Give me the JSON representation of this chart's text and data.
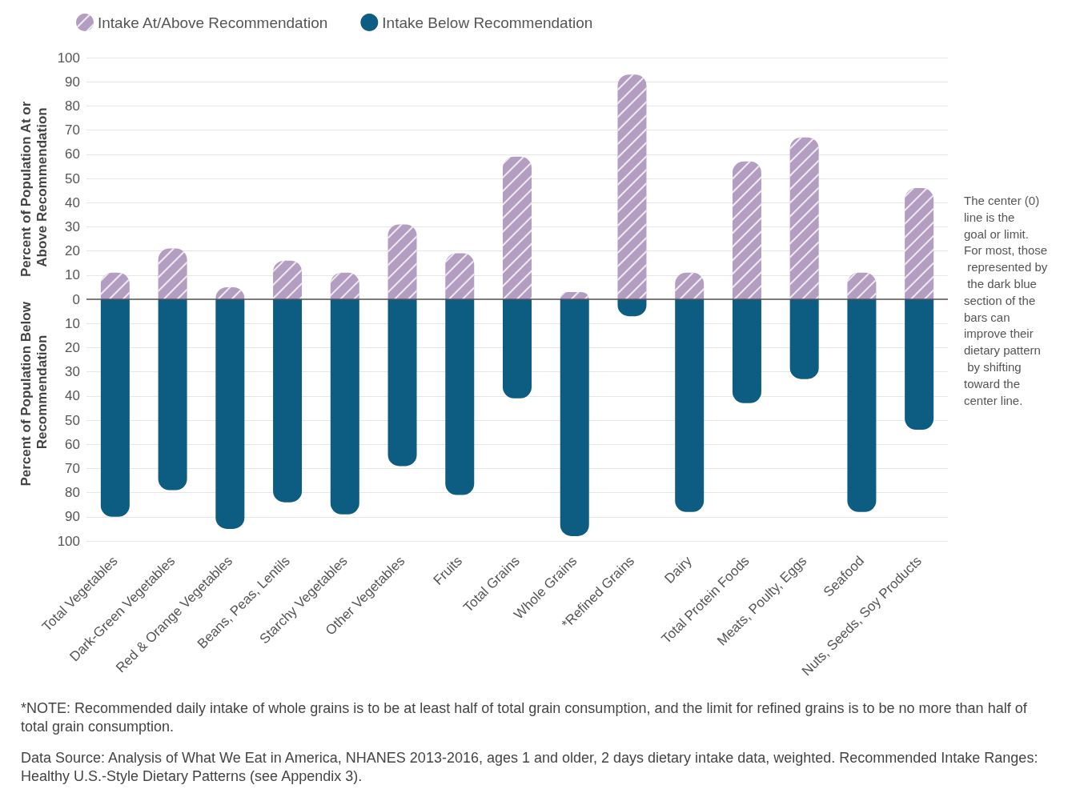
{
  "chart_data": {
    "type": "bar",
    "stacked": true,
    "ylabel": "Percent of Population At or Above Recommendation",
    "categories": [
      "Total Vegetables",
      "Dark-Green Vegetables",
      "Red & Orange Vegetables",
      "Beans, Peas, Lentils",
      "Starchy Vegetables",
      "Other Vegetables",
      "Fruits",
      "Total Grains",
      "Whole Grains",
      "*Refined Grains",
      "Dairy",
      "Total Protein Foods",
      "Meats, Poulty, Eggs",
      "Seafood",
      "Nuts, Seeds, Soy Products"
    ],
    "series": [
      {
        "name": "Intake At/Above Recommendation",
        "color": "#b39dc0",
        "values": [
          11,
          21,
          5,
          16,
          11,
          31,
          19,
          59,
          3,
          93,
          11,
          57,
          67,
          11,
          46
        ]
      },
      {
        "name": "Intake Below Recommendation",
        "color": "#0d5c82",
        "values": [
          -90,
          -79,
          -95,
          -84,
          -89,
          -69,
          -81,
          -41,
          -98,
          -7,
          -88,
          -43,
          -33,
          -88,
          -54
        ]
      }
    ],
    "ylim": [
      -100,
      100
    ],
    "yticks": [
      {
        "value": -100,
        "label": "100"
      },
      {
        "value": -90,
        "label": "90"
      },
      {
        "value": -80,
        "label": "80"
      },
      {
        "value": -70,
        "label": "70"
      },
      {
        "value": -60,
        "label": "60"
      },
      {
        "value": -50,
        "label": "50"
      },
      {
        "value": -40,
        "label": "40"
      },
      {
        "value": -30,
        "label": "30"
      },
      {
        "value": -20,
        "label": "20"
      },
      {
        "value": -10,
        "label": "10"
      },
      0,
      10,
      20,
      30,
      40,
      50,
      60,
      70,
      80,
      90,
      100
    ],
    "ref_lines": [
      {
        "axis": "y",
        "value": 0,
        "label": null,
        "color": "#555555"
      }
    ],
    "grid": "y",
    "legend": "top left",
    "annotations": [
      "Percent of Population Below Recommendation",
      "The center (0) line is the goal or limit. For most, those represented by the dark blue section of the bars can improve their dietary pattern by shifting toward the center line.",
      "*NOTE: Recommended daily intake of whole grains is to be at least half of total grain consumption, and the limit for refined grains is to be no more than half of total grain consumption.",
      "Data Source: Analysis of What We Eat in America, NHANES 2013-2016, ages 1 and older, 2 days dietary intake data, weighted. Recommended Intake Ranges: Healthy U.S.-Style Dietary Patterns (see Appendix 3)."
    ]
  }
}
